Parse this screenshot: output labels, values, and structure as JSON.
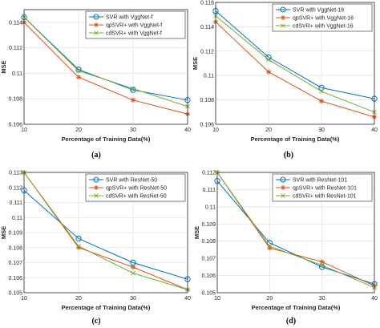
{
  "colors": {
    "series": [
      "#0072BD",
      "#D95319",
      "#77AC30"
    ],
    "axis": "#262626",
    "grid": "#dcdcdc",
    "background": "#ffffff"
  },
  "chart_data": [
    {
      "type": "line",
      "caption": "(a)",
      "xlabel": "Percentage of Training Data(%)",
      "ylabel": "MSE",
      "x": [
        10,
        20,
        30,
        40
      ],
      "xlim": [
        10,
        40
      ],
      "ylim": [
        0.106,
        0.115
      ],
      "yticks": [
        0.106,
        0.108,
        0.11,
        0.112,
        0.114
      ],
      "ytick_labels": [
        "0.106",
        "0.108",
        "0.11",
        "0.112",
        "0.114"
      ],
      "grid": true,
      "legend": "top-right",
      "series": [
        {
          "name": "SVR with VggNet-f",
          "marker": "circle",
          "values": [
            0.1144,
            0.1103,
            0.1087,
            0.1079
          ]
        },
        {
          "name": "qpSVR+ with VggNet-f",
          "marker": "asterisk",
          "values": [
            0.114,
            0.1097,
            0.1079,
            0.1068
          ]
        },
        {
          "name": "cdSVR+ with VggNet-f",
          "marker": "cross",
          "values": [
            0.1144,
            0.1102,
            0.1088,
            0.1074
          ]
        }
      ]
    },
    {
      "type": "line",
      "caption": "(b)",
      "xlabel": "Percentage of Training Data(%)",
      "ylabel": "MSE",
      "x": [
        10,
        20,
        30,
        40
      ],
      "xlim": [
        10,
        40
      ],
      "ylim": [
        0.106,
        0.116
      ],
      "yticks": [
        0.106,
        0.108,
        0.11,
        0.112,
        0.114,
        0.116
      ],
      "ytick_labels": [
        "0.106",
        "0.108",
        "0.11",
        "0.112",
        "0.114",
        "0.116"
      ],
      "grid": true,
      "legend": "top-right",
      "series": [
        {
          "name": "SVR with VggNet-16",
          "marker": "circle",
          "values": [
            0.1153,
            0.1115,
            0.109,
            0.1081
          ]
        },
        {
          "name": "qpSVR+ with VggNet-16",
          "marker": "asterisk",
          "values": [
            0.1144,
            0.1103,
            0.1079,
            0.1066
          ]
        },
        {
          "name": "cdSVR+ with VggNet-16",
          "marker": "cross",
          "values": [
            0.1149,
            0.1113,
            0.1087,
            0.107
          ]
        }
      ]
    },
    {
      "type": "line",
      "caption": "(c)",
      "xlabel": "Percentage of Training Data(%)",
      "ylabel": "MSE",
      "x": [
        10,
        20,
        30,
        40
      ],
      "xlim": [
        10,
        40
      ],
      "ylim": [
        0.105,
        0.113
      ],
      "yticks": [
        0.105,
        0.106,
        0.107,
        0.108,
        0.109,
        0.11,
        0.111,
        0.112,
        0.113
      ],
      "ytick_labels": [
        "0.105",
        "0.106",
        "0.107",
        "0.108",
        "0.109",
        "0.11",
        "0.111",
        "0.112",
        "0.113"
      ],
      "grid": true,
      "legend": "top-right",
      "series": [
        {
          "name": "SVR with ResNet-50",
          "marker": "circle",
          "values": [
            0.1118,
            0.1086,
            0.107,
            0.1059
          ]
        },
        {
          "name": "qpSVR+ with ResNet-50",
          "marker": "asterisk",
          "values": [
            0.113,
            0.108,
            0.1067,
            0.1052
          ]
        },
        {
          "name": "cdSVR+ with ResNet-50",
          "marker": "cross",
          "values": [
            0.113,
            0.1081,
            0.1063,
            0.1052
          ]
        }
      ]
    },
    {
      "type": "line",
      "caption": "(d)",
      "xlabel": "Percentage of Training Data(%)",
      "ylabel": "MSE",
      "x": [
        10,
        20,
        30,
        40
      ],
      "xlim": [
        10,
        40
      ],
      "ylim": [
        0.105,
        0.112
      ],
      "yticks": [
        0.105,
        0.106,
        0.107,
        0.108,
        0.109,
        0.11,
        0.111,
        0.112
      ],
      "ytick_labels": [
        "0.105",
        "0.106",
        "0.107",
        "0.108",
        "0.109",
        "0.11",
        "0.111",
        "0.112"
      ],
      "grid": true,
      "legend": "top-right",
      "series": [
        {
          "name": "SVR with ResNet-101",
          "marker": "circle",
          "values": [
            0.1115,
            0.1079,
            0.1065,
            0.1055
          ]
        },
        {
          "name": "qpSVR+ with ResNet-101",
          "marker": "asterisk",
          "values": [
            0.112,
            0.1076,
            0.1068,
            0.1054
          ]
        },
        {
          "name": "cdSVR+ with ResNet-101",
          "marker": "cross",
          "values": [
            0.112,
            0.1077,
            0.1066,
            0.1053
          ]
        }
      ]
    }
  ]
}
